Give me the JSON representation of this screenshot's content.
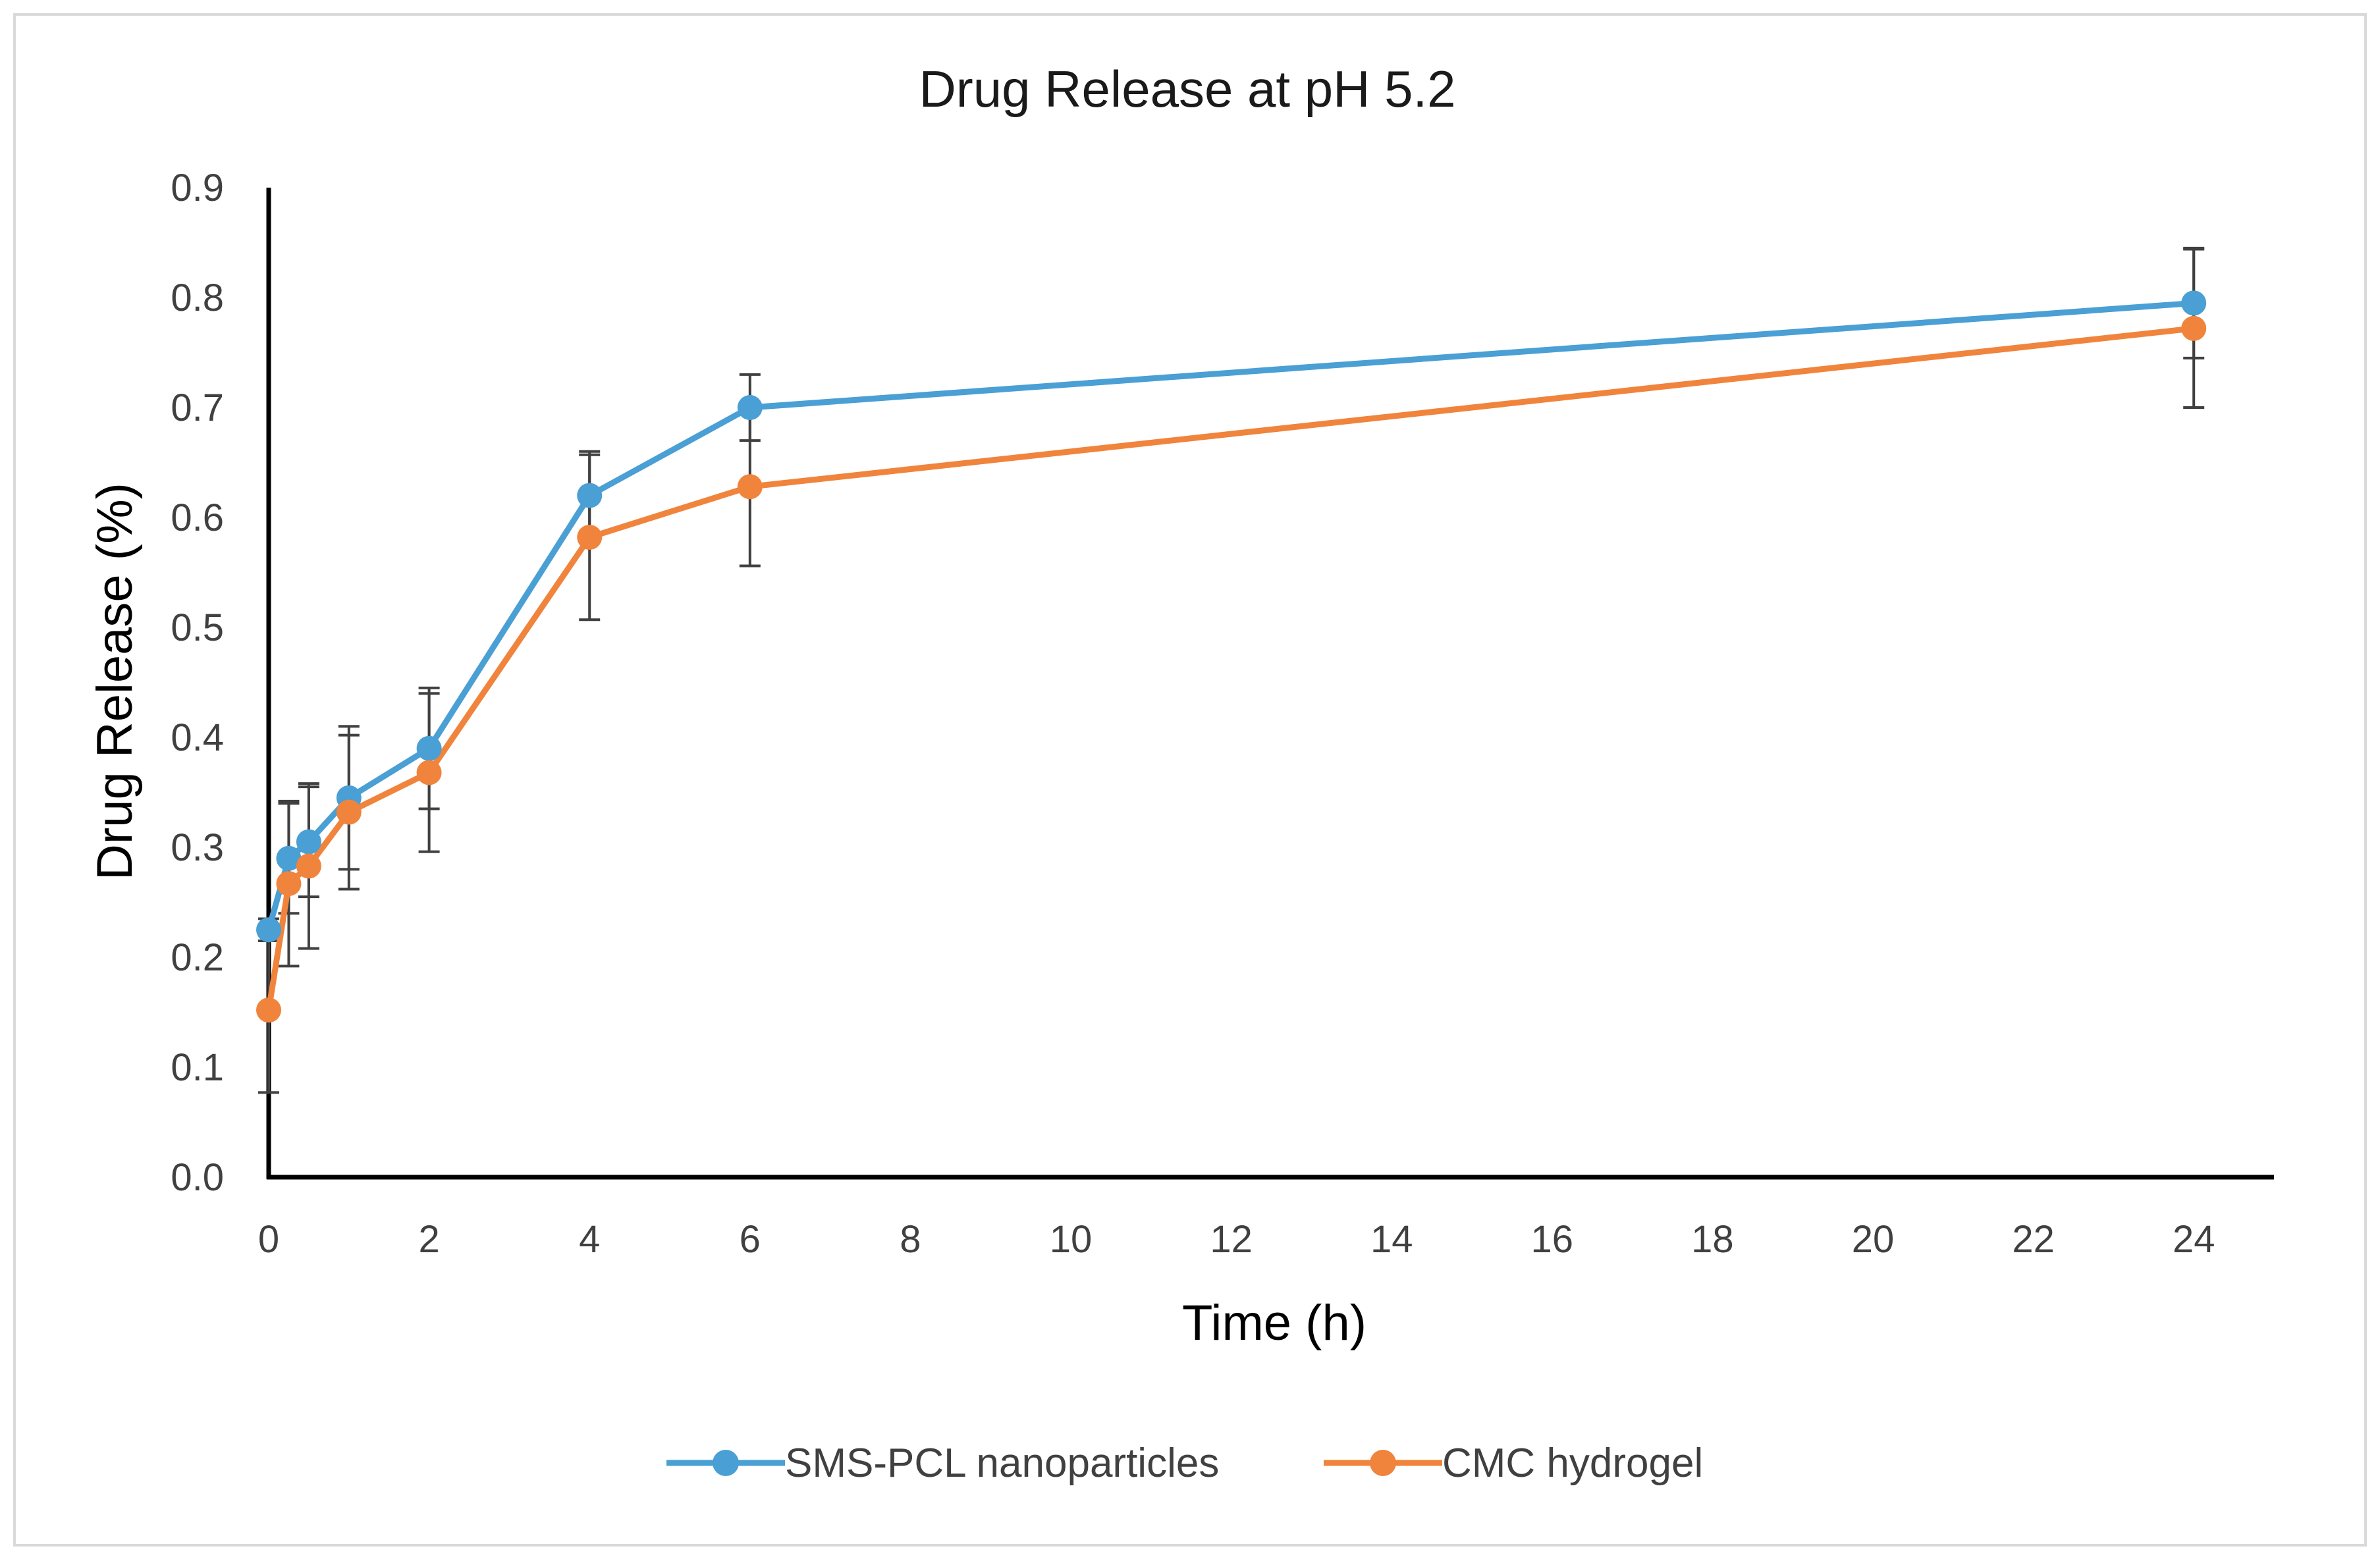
{
  "chart_data": {
    "type": "line",
    "title": "Drug Release at pH 5.2",
    "xlabel": "Time (h)",
    "ylabel": "Drug Release (%)",
    "xlim": [
      0,
      25
    ],
    "ylim": [
      0,
      0.9
    ],
    "x_ticks": [
      "0",
      "2",
      "4",
      "6",
      "8",
      "10",
      "12",
      "14",
      "16",
      "18",
      "20",
      "22",
      "24"
    ],
    "y_ticks": [
      "0.0",
      "0.1",
      "0.2",
      "0.3",
      "0.4",
      "0.5",
      "0.6",
      "0.7",
      "0.8",
      "0.9"
    ],
    "grid": false,
    "legend_position": "bottom",
    "series": [
      {
        "name": "SMS-PCL nanoparticles",
        "color": "#4a9fd4",
        "x": [
          0,
          0.25,
          0.5,
          1,
          2,
          4,
          6,
          24
        ],
        "y": [
          0.225,
          0.29,
          0.305,
          0.345,
          0.39,
          0.62,
          0.7,
          0.795
        ],
        "error": [
          0.01,
          0.05,
          0.05,
          0.065,
          0.055,
          0.04,
          0.03,
          0.05
        ]
      },
      {
        "name": "CMC hydrogel",
        "color": "#f0843c",
        "x": [
          0,
          0.25,
          0.5,
          1,
          2,
          4,
          6,
          24
        ],
        "y": [
          0.152,
          0.267,
          0.283,
          0.332,
          0.368,
          0.582,
          0.628,
          0.772
        ],
        "error": [
          0.075,
          0.075,
          0.075,
          0.07,
          0.072,
          0.075,
          0.072,
          0.072
        ]
      }
    ]
  }
}
